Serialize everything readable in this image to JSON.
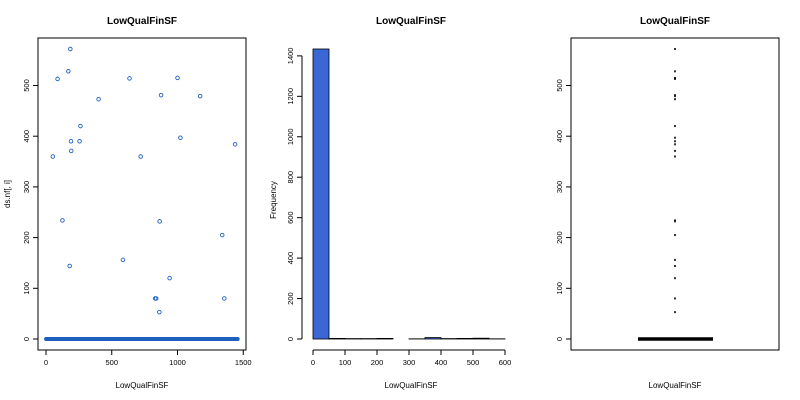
{
  "chart_data": [
    {
      "type": "scatter",
      "title": "LowQualFinSF",
      "xlabel": "LowQualFinSF",
      "ylabel": "ds.nf[, i]",
      "xlim": [
        0,
        1460
      ],
      "ylim": [
        0,
        572
      ],
      "x_ticks": [
        0,
        500,
        1000,
        1500
      ],
      "y_ticks": [
        0,
        100,
        200,
        300,
        400,
        500
      ],
      "point_color": "#1f5fbf",
      "zero_band": {
        "y": 0,
        "x_from": 1,
        "x_to": 1460
      },
      "points": [
        {
          "x": 52,
          "y": 360
        },
        {
          "x": 88,
          "y": 513
        },
        {
          "x": 125,
          "y": 234
        },
        {
          "x": 170,
          "y": 528
        },
        {
          "x": 180,
          "y": 144
        },
        {
          "x": 185,
          "y": 572
        },
        {
          "x": 190,
          "y": 390
        },
        {
          "x": 192,
          "y": 371
        },
        {
          "x": 255,
          "y": 390
        },
        {
          "x": 262,
          "y": 420
        },
        {
          "x": 400,
          "y": 473
        },
        {
          "x": 585,
          "y": 156
        },
        {
          "x": 635,
          "y": 514
        },
        {
          "x": 720,
          "y": 360
        },
        {
          "x": 830,
          "y": 80
        },
        {
          "x": 838,
          "y": 80
        },
        {
          "x": 862,
          "y": 53
        },
        {
          "x": 864,
          "y": 232
        },
        {
          "x": 875,
          "y": 481
        },
        {
          "x": 940,
          "y": 120
        },
        {
          "x": 1000,
          "y": 515
        },
        {
          "x": 1022,
          "y": 397
        },
        {
          "x": 1172,
          "y": 479
        },
        {
          "x": 1340,
          "y": 205
        },
        {
          "x": 1356,
          "y": 80
        },
        {
          "x": 1438,
          "y": 384
        }
      ]
    },
    {
      "type": "bar",
      "title": "LowQualFinSF",
      "xlabel": "LowQualFinSF",
      "ylabel": "Frequency",
      "xlim": [
        0,
        600
      ],
      "ylim": [
        0,
        1434
      ],
      "x_ticks": [
        0,
        100,
        200,
        300,
        400,
        500,
        600
      ],
      "y_ticks": [
        0,
        200,
        400,
        600,
        800,
        1000,
        1200,
        1400
      ],
      "bar_color": "#3a66d6",
      "bins": [
        {
          "from": 0,
          "to": 50,
          "count": 1434
        },
        {
          "from": 50,
          "to": 100,
          "count": 3
        },
        {
          "from": 100,
          "to": 150,
          "count": 2
        },
        {
          "from": 150,
          "to": 200,
          "count": 2
        },
        {
          "from": 200,
          "to": 250,
          "count": 3
        },
        {
          "from": 250,
          "to": 300,
          "count": 0
        },
        {
          "from": 300,
          "to": 350,
          "count": 1
        },
        {
          "from": 350,
          "to": 400,
          "count": 7
        },
        {
          "from": 400,
          "to": 450,
          "count": 2
        },
        {
          "from": 450,
          "to": 500,
          "count": 3
        },
        {
          "from": 500,
          "to": 550,
          "count": 4
        },
        {
          "from": 550,
          "to": 600,
          "count": 1
        }
      ]
    },
    {
      "type": "box",
      "title": "LowQualFinSF",
      "xlabel": "LowQualFinSF",
      "ylabel": "",
      "ylim": [
        0,
        572
      ],
      "y_ticks": [
        0,
        100,
        200,
        300,
        400,
        500
      ],
      "median": 0,
      "q1": 0,
      "q3": 0,
      "whisker_low": 0,
      "whisker_high": 0,
      "outliers": [
        53,
        80,
        120,
        144,
        156,
        205,
        232,
        234,
        360,
        371,
        384,
        390,
        397,
        420,
        473,
        479,
        481,
        513,
        514,
        515,
        528,
        572
      ]
    }
  ]
}
